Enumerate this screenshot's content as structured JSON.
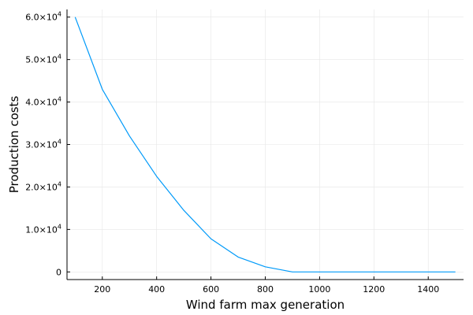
{
  "chart_data": {
    "type": "line",
    "title": "",
    "xlabel": "Wind farm max generation",
    "ylabel": "Production costs",
    "xlim": [
      70,
      1530
    ],
    "ylim": [
      -1800,
      61800
    ],
    "x_ticks": [
      200,
      400,
      600,
      800,
      1000,
      1200,
      1400
    ],
    "y_ticks": [
      {
        "value": 0,
        "mantissa": "0",
        "exponent": ""
      },
      {
        "value": 10000,
        "mantissa": "1.0×10",
        "exponent": "4"
      },
      {
        "value": 20000,
        "mantissa": "2.0×10",
        "exponent": "4"
      },
      {
        "value": 30000,
        "mantissa": "3.0×10",
        "exponent": "4"
      },
      {
        "value": 40000,
        "mantissa": "4.0×10",
        "exponent": "4"
      },
      {
        "value": 50000,
        "mantissa": "5.0×10",
        "exponent": "4"
      },
      {
        "value": 60000,
        "mantissa": "6.0×10",
        "exponent": "4"
      }
    ],
    "grid": true,
    "legend": "none",
    "series": [
      {
        "color": "#009af9",
        "x": [
          100,
          200,
          300,
          400,
          500,
          600,
          700,
          800,
          900,
          1000,
          1100,
          1200,
          1300,
          1400,
          1500
        ],
        "y": [
          60000,
          43000,
          32000,
          22500,
          14500,
          7800,
          3500,
          1200,
          0,
          0,
          0,
          0,
          0,
          0,
          0
        ]
      }
    ]
  }
}
